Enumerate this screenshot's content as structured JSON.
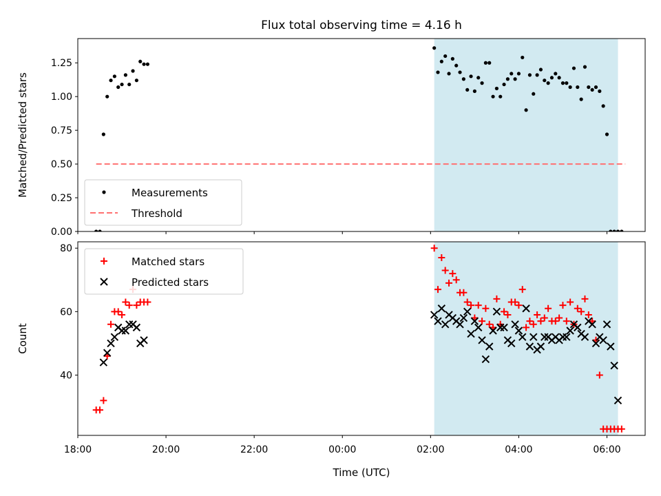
{
  "title": "Flux total observing time = 4.16 h",
  "chart_data": [
    {
      "type": "scatter",
      "ylabel": "Matched/Predicted stars",
      "xlabel": "",
      "xlim": [
        "18:00",
        "06:52"
      ],
      "ylim": [
        0,
        1.43
      ],
      "yticks": [
        0.0,
        0.25,
        0.5,
        0.75,
        1.0,
        1.25
      ],
      "ytick_labels": [
        "0.00",
        "0.25",
        "0.50",
        "0.75",
        "1.00",
        "1.25"
      ],
      "legend": {
        "placement": "lower-left",
        "entries": [
          "Measurements",
          "Threshold"
        ]
      },
      "shaded_region": {
        "x": [
          "02:05",
          "06:15"
        ],
        "color": "#add8e6"
      },
      "series": [
        {
          "name": "Measurements",
          "marker": "dot",
          "color": "#000000",
          "x": [
            "18:25",
            "18:30",
            "18:35",
            "18:40",
            "18:45",
            "18:50",
            "18:55",
            "19:00",
            "19:05",
            "19:10",
            "19:15",
            "19:20",
            "19:25",
            "19:30",
            "19:35",
            "02:05",
            "02:10",
            "02:15",
            "02:20",
            "02:25",
            "02:30",
            "02:35",
            "02:40",
            "02:45",
            "02:50",
            "02:55",
            "03:00",
            "03:05",
            "03:10",
            "03:15",
            "03:20",
            "03:25",
            "03:30",
            "03:35",
            "03:40",
            "03:45",
            "03:50",
            "03:55",
            "04:00",
            "04:05",
            "04:10",
            "04:15",
            "04:20",
            "04:25",
            "04:30",
            "04:35",
            "04:40",
            "04:45",
            "04:50",
            "04:55",
            "05:00",
            "05:05",
            "05:10",
            "05:15",
            "05:20",
            "05:25",
            "05:30",
            "05:35",
            "05:40",
            "05:45",
            "05:50",
            "05:55",
            "06:00",
            "06:05",
            "06:10",
            "06:15",
            "06:20"
          ],
          "y": [
            0.0,
            0.0,
            0.72,
            1.0,
            1.12,
            1.15,
            1.07,
            1.09,
            1.16,
            1.09,
            1.19,
            1.12,
            1.26,
            1.24,
            1.24,
            1.36,
            1.18,
            1.26,
            1.3,
            1.17,
            1.28,
            1.23,
            1.18,
            1.13,
            1.05,
            1.15,
            1.04,
            1.14,
            1.1,
            1.25,
            1.25,
            1.0,
            1.06,
            1.0,
            1.09,
            1.13,
            1.17,
            1.13,
            1.17,
            1.29,
            0.9,
            1.16,
            1.02,
            1.16,
            1.2,
            1.12,
            1.1,
            1.14,
            1.17,
            1.14,
            1.1,
            1.1,
            1.07,
            1.21,
            1.07,
            0.98,
            1.22,
            1.07,
            1.05,
            1.07,
            1.04,
            0.93,
            0.72,
            0.0,
            0.0,
            0.0,
            0.0
          ]
        },
        {
          "name": "Threshold",
          "style": "dashed",
          "color": "#ff7070",
          "x": [
            "18:25",
            "06:25"
          ],
          "y": [
            0.5,
            0.5
          ]
        }
      ]
    },
    {
      "type": "scatter",
      "xlabel": "Time (UTC)",
      "ylabel": "Count",
      "xlim": [
        "18:00",
        "06:52"
      ],
      "ylim": [
        21,
        82
      ],
      "yticks": [
        40,
        60,
        80
      ],
      "ytick_labels": [
        "40",
        "60",
        "80"
      ],
      "xticks": [
        "18:00",
        "20:00",
        "22:00",
        "00:00",
        "02:00",
        "04:00",
        "06:00"
      ],
      "legend": {
        "placement": "upper-left",
        "entries": [
          "Matched stars",
          "Predicted stars"
        ]
      },
      "shaded_region": {
        "x": [
          "02:05",
          "06:15"
        ],
        "color": "#add8e6"
      },
      "series": [
        {
          "name": "Matched stars",
          "marker": "plus",
          "color": "#ff0000",
          "x": [
            "18:25",
            "18:30",
            "18:35",
            "18:40",
            "18:45",
            "18:50",
            "18:55",
            "19:00",
            "19:05",
            "19:10",
            "19:15",
            "19:20",
            "19:25",
            "19:30",
            "19:35",
            "02:05",
            "02:10",
            "02:15",
            "02:20",
            "02:25",
            "02:30",
            "02:35",
            "02:40",
            "02:45",
            "02:50",
            "02:55",
            "03:00",
            "03:05",
            "03:10",
            "03:15",
            "03:20",
            "03:25",
            "03:30",
            "03:35",
            "03:40",
            "03:45",
            "03:50",
            "03:55",
            "04:00",
            "04:05",
            "04:10",
            "04:15",
            "04:20",
            "04:25",
            "04:30",
            "04:35",
            "04:40",
            "04:45",
            "04:50",
            "04:55",
            "05:00",
            "05:05",
            "05:10",
            "05:15",
            "05:20",
            "05:25",
            "05:30",
            "05:35",
            "05:40",
            "05:45",
            "05:50",
            "05:55",
            "06:00",
            "06:05",
            "06:10",
            "06:15",
            "06:20"
          ],
          "y": [
            29,
            29,
            32,
            46,
            56,
            60,
            60,
            59,
            63,
            62,
            67,
            62,
            63,
            63,
            63,
            80,
            67,
            77,
            73,
            69,
            72,
            70,
            66,
            66,
            63,
            62,
            58,
            62,
            57,
            61,
            56,
            55,
            64,
            56,
            60,
            59,
            63,
            63,
            62,
            67,
            55,
            57,
            56,
            59,
            57,
            58,
            61,
            57,
            57,
            58,
            62,
            57,
            63,
            56,
            61,
            60,
            64,
            59,
            57,
            51,
            40,
            23,
            23,
            23,
            23,
            23,
            23
          ]
        },
        {
          "name": "Predicted stars",
          "marker": "x",
          "color": "#000000",
          "x": [
            "18:35",
            "18:40",
            "18:45",
            "18:50",
            "18:55",
            "19:00",
            "19:05",
            "19:10",
            "19:15",
            "19:20",
            "19:25",
            "19:30",
            "02:05",
            "02:10",
            "02:15",
            "02:20",
            "02:25",
            "02:30",
            "02:35",
            "02:40",
            "02:45",
            "02:50",
            "02:55",
            "03:00",
            "03:05",
            "03:10",
            "03:15",
            "03:20",
            "03:25",
            "03:30",
            "03:35",
            "03:40",
            "03:45",
            "03:50",
            "03:55",
            "04:00",
            "04:05",
            "04:10",
            "04:15",
            "04:20",
            "04:25",
            "04:30",
            "04:35",
            "04:40",
            "04:45",
            "04:50",
            "04:55",
            "05:00",
            "05:05",
            "05:10",
            "05:15",
            "05:20",
            "05:25",
            "05:30",
            "05:35",
            "05:40",
            "05:45",
            "05:50",
            "05:55",
            "06:00",
            "06:05",
            "06:10",
            "06:15"
          ],
          "y": [
            44,
            47,
            50,
            52,
            55,
            54,
            54,
            56,
            56,
            55,
            50,
            51,
            59,
            57,
            61,
            56,
            59,
            58,
            57,
            56,
            58,
            60,
            53,
            57,
            55,
            51,
            45,
            49,
            54,
            60,
            55,
            55,
            51,
            50,
            56,
            54,
            52,
            61,
            49,
            52,
            48,
            49,
            52,
            52,
            51,
            52,
            51,
            52,
            52,
            54,
            56,
            55,
            53,
            52,
            57,
            56,
            50,
            52,
            51,
            56,
            49,
            43,
            32
          ]
        }
      ]
    }
  ]
}
